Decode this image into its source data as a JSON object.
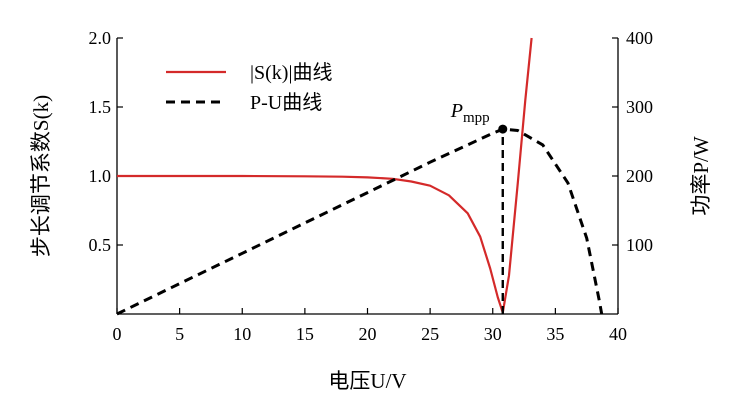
{
  "chart_data": {
    "type": "line",
    "title": "",
    "x_axis": {
      "label": "电压U/V",
      "range": [
        0,
        40
      ],
      "ticks": [
        0,
        5,
        10,
        15,
        20,
        25,
        30,
        35,
        40
      ],
      "tick_labels": [
        "0",
        "5",
        "10",
        "15",
        "20",
        "25",
        "30",
        "35",
        "40"
      ]
    },
    "y_axis_left": {
      "label": "步长调节系数S(k)",
      "range": [
        0,
        2.0
      ],
      "ticks": [
        0.5,
        1.0,
        1.5,
        2.0
      ],
      "tick_labels": [
        "0.5",
        "1.0",
        "1.5",
        "2.0"
      ]
    },
    "y_axis_right": {
      "label": "功率P/W",
      "range": [
        0,
        400
      ],
      "ticks": [
        100,
        200,
        300,
        400
      ],
      "tick_labels": [
        "100",
        "200",
        "300",
        "400"
      ]
    },
    "legend": {
      "placement": "top-left",
      "entries": [
        {
          "label": "|S(k)|曲线",
          "color": "#d42a2a",
          "style": "solid"
        },
        {
          "label": "P-U曲线",
          "color": "#000000",
          "style": "dashed"
        }
      ]
    },
    "series": [
      {
        "name": "|S(k)|曲线",
        "axis": "left",
        "color": "#d42a2a",
        "style": "solid",
        "points": [
          [
            0,
            1.0
          ],
          [
            5,
            1.0
          ],
          [
            10,
            1.0
          ],
          [
            15,
            0.998
          ],
          [
            18,
            0.995
          ],
          [
            20,
            0.99
          ],
          [
            22,
            0.98
          ],
          [
            23.5,
            0.96
          ],
          [
            25,
            0.93
          ],
          [
            26.5,
            0.86
          ],
          [
            28,
            0.73
          ],
          [
            29,
            0.56
          ],
          [
            29.8,
            0.33
          ],
          [
            30.4,
            0.12
          ],
          [
            30.8,
            0.01
          ],
          [
            31.3,
            0.28
          ],
          [
            32,
            0.95
          ],
          [
            32.6,
            1.55
          ],
          [
            33.1,
            2.0
          ]
        ]
      },
      {
        "name": "P-U曲线",
        "axis": "right",
        "color": "#000000",
        "style": "dashed",
        "points": [
          [
            0,
            0
          ],
          [
            5,
            44
          ],
          [
            10,
            88
          ],
          [
            15,
            132
          ],
          [
            20,
            176
          ],
          [
            25,
            220
          ],
          [
            28,
            245
          ],
          [
            30,
            262
          ],
          [
            30.8,
            268
          ],
          [
            32,
            266
          ],
          [
            34,
            245
          ],
          [
            36,
            190
          ],
          [
            37.5,
            110
          ],
          [
            38.5,
            20
          ],
          [
            38.7,
            0
          ]
        ]
      }
    ],
    "annotations": [
      {
        "text": "P",
        "subscript": "mpp",
        "x": 30.8,
        "y_right": 268,
        "marker": "dot"
      },
      {
        "type": "vertical-dashed-line",
        "x": 30.8,
        "from_right": 0,
        "to_right": 268
      }
    ]
  }
}
